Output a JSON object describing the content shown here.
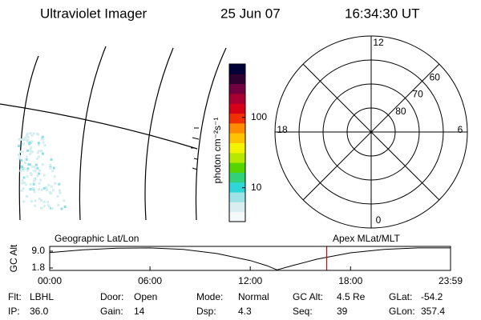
{
  "header": {
    "instrument": "Ultraviolet Imager",
    "date": "25 Jun 07",
    "time": "16:34:30 UT"
  },
  "chart_data": [
    {
      "type": "colorbar",
      "label": "photon cm⁻²s⁻¹",
      "log_scale": true,
      "ylim": [
        3.3,
        575
      ],
      "yticks": [
        10,
        100
      ],
      "colors": [
        "#f4f8f8",
        "#d8eef0",
        "#9fe3e6",
        "#2fd6d8",
        "#33d07a",
        "#55d400",
        "#b8e800",
        "#f4f400",
        "#ffc400",
        "#ff8c00",
        "#f03000",
        "#d80018",
        "#a80030",
        "#700040",
        "#300030",
        "#000038"
      ]
    },
    {
      "type": "polar",
      "rlim": [
        90,
        50
      ],
      "rticks": [
        80,
        70,
        60
      ],
      "thetaticks": [
        12,
        6,
        0,
        18
      ]
    },
    {
      "type": "line",
      "title_left": "Geographic Lat/Lon",
      "title_right": "Apex MLat/MLT",
      "ylabel": "GC Alt",
      "xlim": [
        0,
        23.983
      ],
      "xticks": [
        {
          "value": 0,
          "label": "00:00"
        },
        {
          "value": 6,
          "label": "06:00"
        },
        {
          "value": 12,
          "label": "12:00"
        },
        {
          "value": 18,
          "label": "18:00"
        },
        {
          "value": 23.983,
          "label": "23:59"
        }
      ],
      "ylim": [
        0.77,
        11.06
      ],
      "yticks": [
        {
          "value": 9,
          "label": "9.0"
        },
        {
          "value": 1.8,
          "label": "1.8"
        }
      ],
      "x": [
        0,
        2,
        4,
        6,
        8,
        10,
        12,
        13,
        13.6,
        14.5,
        16,
        18,
        20,
        22,
        23.983
      ],
      "series": [
        {
          "color": "#000000",
          "values": [
            8.4,
            9.6,
            10.3,
            10.4,
            9.8,
            8.0,
            5.0,
            2.8,
            1.0,
            2.8,
            5.6,
            8.3,
            9.8,
            10.4,
            10.4
          ]
        }
      ],
      "marker_x": 16.575,
      "marker_color": "#e00000"
    }
  ],
  "footer": {
    "rows": [
      [
        {
          "label": "Flt:",
          "value": "LBHL"
        },
        {
          "label": "Door:",
          "value": "Open"
        },
        {
          "label": "Mode:",
          "value": "Normal"
        },
        {
          "label": "GC Alt:",
          "value": "4.5 Re"
        },
        {
          "label": "GLat:",
          "value": "-54.2"
        }
      ],
      [
        {
          "label": "IP:",
          "value": "36.0"
        },
        {
          "label": "Gain:",
          "value": "14"
        },
        {
          "label": "Dsp:",
          "value": "4.3"
        },
        {
          "label": "Seq:",
          "value": "39"
        },
        {
          "label": "GLon:",
          "value": "357.4"
        }
      ]
    ]
  }
}
